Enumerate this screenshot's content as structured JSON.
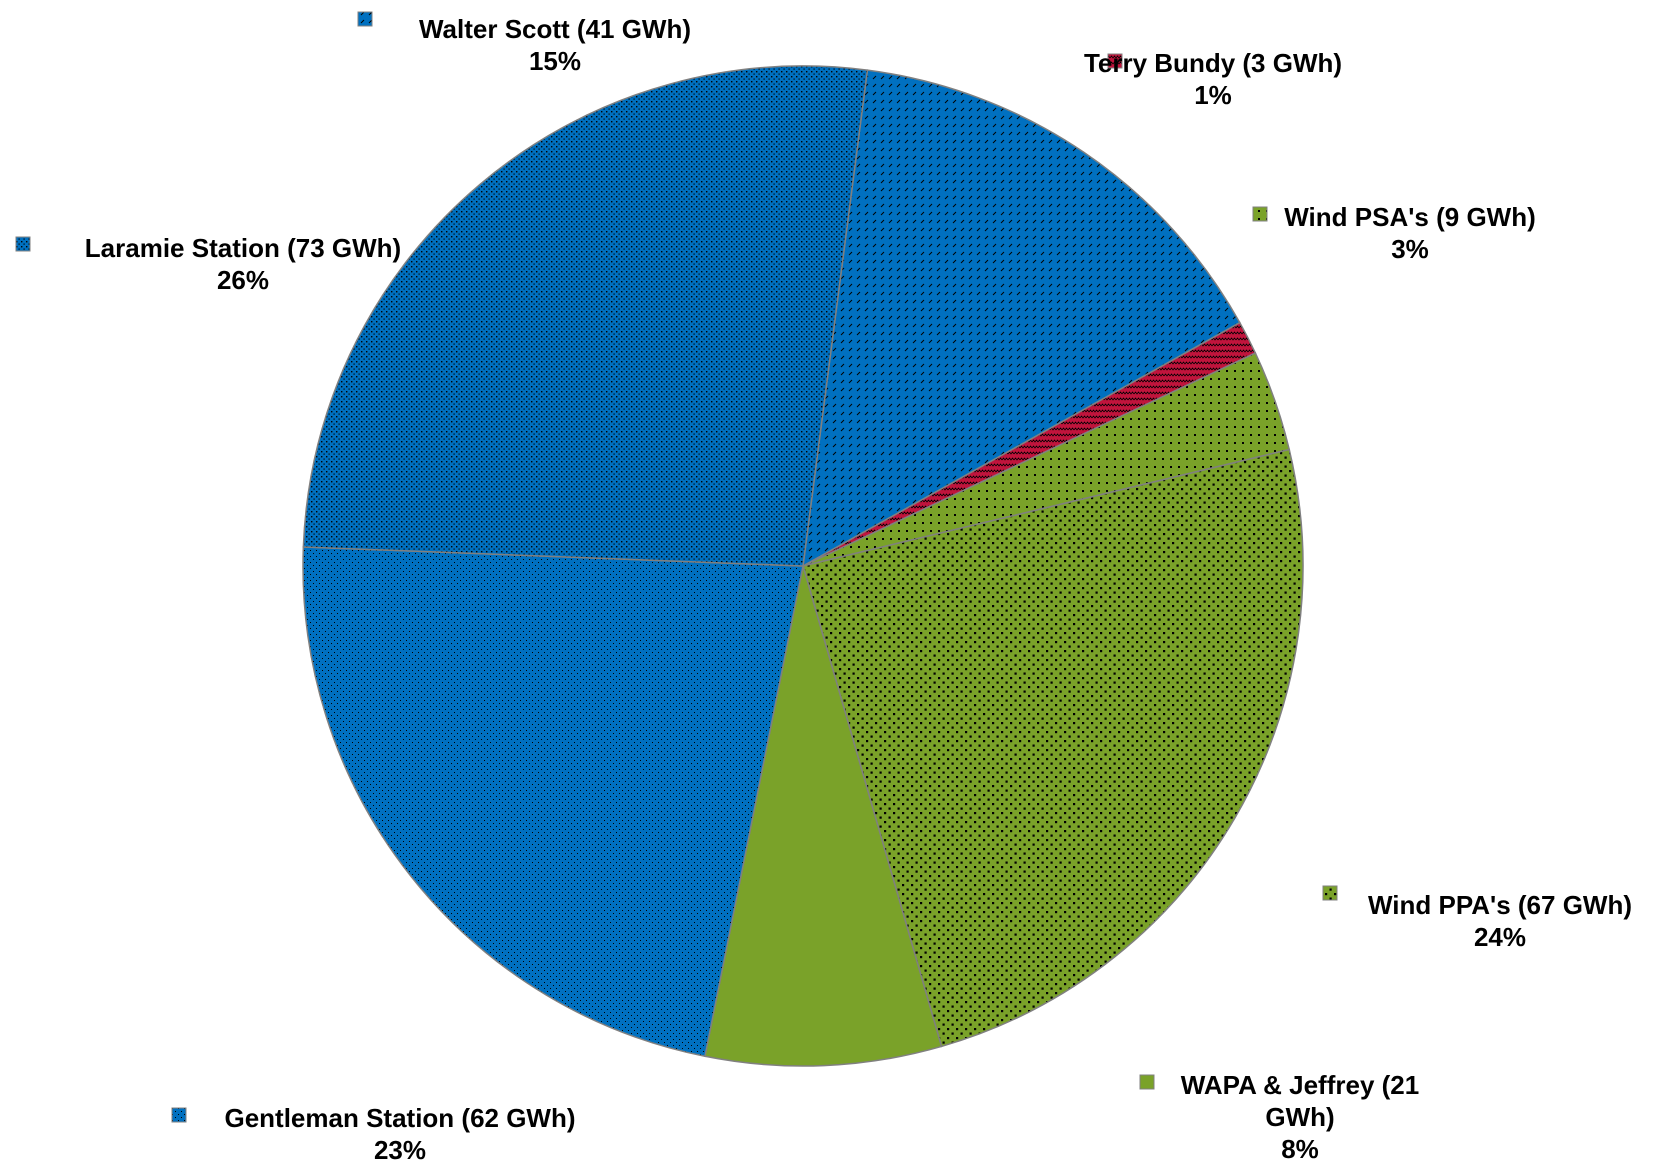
{
  "chart_data": {
    "type": "pie",
    "start_angle_deg": -82.6,
    "slices": [
      {
        "name": "Walter Scott (41 GWh)",
        "value": 41,
        "percent_label": "15%",
        "color": "#0070C0",
        "pattern": "diagonal-dash"
      },
      {
        "name": "Terry Bundy (3 GWh)",
        "value": 3,
        "percent_label": "1%",
        "color": "#C0143C",
        "pattern": "zigzag"
      },
      {
        "name": "Wind PSA's (9 GWh)",
        "value": 9,
        "percent_label": "3%",
        "color": "#7AA229",
        "pattern": "large-dots"
      },
      {
        "name": "Wind PPA's (67 GWh)",
        "value": 67,
        "percent_label": "24%",
        "color": "#7AA229",
        "pattern": "medium-dots"
      },
      {
        "name": "WAPA & Jeffrey (21 GWh)",
        "value": 21,
        "percent_label": "8%",
        "color": "#7AA229",
        "pattern": "solid"
      },
      {
        "name": "Gentleman Station (62 GWh)",
        "value": 62,
        "percent_label": "23%",
        "color": "#0070C0",
        "pattern": "fine-dots"
      },
      {
        "name": "Laramie Station (73 GWh)",
        "value": 73,
        "percent_label": "26%",
        "color": "#0070C0",
        "pattern": "dense-dots"
      }
    ],
    "labels": [
      {
        "slice": 0,
        "lines": [
          "Walter Scott (41 GWh)",
          "15%"
        ]
      },
      {
        "slice": 1,
        "lines": [
          "Terry Bundy (3 GWh)",
          "1%"
        ]
      },
      {
        "slice": 2,
        "lines": [
          "Wind PSA's (9 GWh)",
          "3%"
        ]
      },
      {
        "slice": 3,
        "lines": [
          "Wind PPA's (67 GWh)",
          "24%"
        ]
      },
      {
        "slice": 4,
        "lines": [
          "WAPA & Jeffrey (21",
          "GWh)",
          "8%"
        ]
      },
      {
        "slice": 5,
        "lines": [
          "Gentleman Station (62 GWh)",
          "23%"
        ]
      },
      {
        "slice": 6,
        "lines": [
          "Laramie Station (73 GWh)",
          "26%"
        ]
      }
    ]
  }
}
